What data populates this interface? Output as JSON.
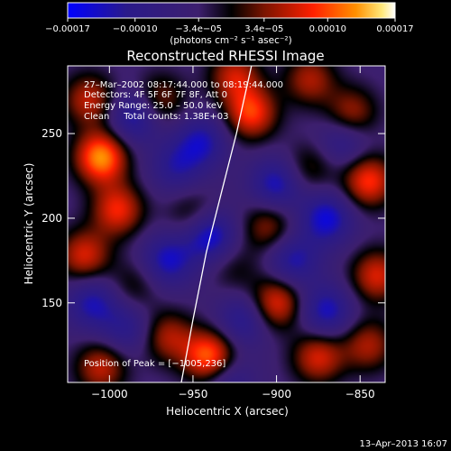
{
  "chart_data": {
    "type": "heatmap",
    "title": "Reconstructed RHESSI Image",
    "xlabel": "Heliocentric X (arcsec)",
    "ylabel": "Heliocentric Y (arcsec)",
    "xlim": [
      -1025,
      -835
    ],
    "ylim": [
      103,
      290
    ],
    "xticks": [
      -1000,
      -950,
      -900,
      -850
    ],
    "yticks": [
      150,
      200,
      250
    ],
    "xtick_labels": [
      "−1000",
      "−950",
      "−900",
      "−850"
    ],
    "ytick_labels": [
      "150",
      "200",
      "250"
    ],
    "colorbar": {
      "ticks": [
        -0.00017,
        -0.0001,
        -3.4e-05,
        3.4e-05,
        0.0001,
        0.00017
      ],
      "tick_labels": [
        "−0.00017",
        "−0.00010",
        "−3.4e−05",
        "3.4e−05",
        "0.00010",
        "0.00017"
      ],
      "range": [
        -0.00017,
        0.00017
      ],
      "unit_label": "(photons cm⁻² s⁻¹ asec⁻²)",
      "colormap": [
        "#0000ff",
        "#2a1a8a",
        "#3d1f6e",
        "#000000",
        "#7a1400",
        "#ff2000",
        "#ff9000",
        "#ffe87a",
        "#ffffff"
      ]
    },
    "annotations": {
      "time": "27–Mar–2002 08:17:44.000 to 08:19:44.000",
      "detectors": "Detectors: 4F 5F 6F 7F 8F, Att 0",
      "energy": "Energy Range: 25.0 – 50.0 keV",
      "clean": "Clean     Total counts: 1.38E+03",
      "peak": "Position of Peak = [−1005,236]"
    },
    "peak": [
      -1005,
      236
    ],
    "limb_curve": [
      [
        -957,
        103
      ],
      [
        -950,
        140
      ],
      [
        -942,
        180
      ],
      [
        -933,
        215
      ],
      [
        -924,
        250
      ],
      [
        -915,
        290
      ]
    ],
    "sources": [
      {
        "x": -1005,
        "y": 236,
        "v": 0.00017
      },
      {
        "x": -1012,
        "y": 270,
        "v": 0.0001
      },
      {
        "x": -970,
        "y": 270,
        "v": 8e-05
      },
      {
        "x": -925,
        "y": 284,
        "v": 0.0001
      },
      {
        "x": -915,
        "y": 262,
        "v": 0.00013
      },
      {
        "x": -880,
        "y": 282,
        "v": 9e-05
      },
      {
        "x": -855,
        "y": 262,
        "v": 9e-05
      },
      {
        "x": -845,
        "y": 222,
        "v": 0.00013
      },
      {
        "x": -840,
        "y": 166,
        "v": 0.00011
      },
      {
        "x": -845,
        "y": 125,
        "v": 9e-05
      },
      {
        "x": -875,
        "y": 118,
        "v": 0.00011
      },
      {
        "x": -900,
        "y": 150,
        "v": 0.00012
      },
      {
        "x": -940,
        "y": 118,
        "v": 0.00016
      },
      {
        "x": -965,
        "y": 130,
        "v": 9e-05
      },
      {
        "x": -1005,
        "y": 112,
        "v": 0.0001
      },
      {
        "x": -1015,
        "y": 178,
        "v": 0.00011
      },
      {
        "x": -995,
        "y": 205,
        "v": 0.00012
      },
      {
        "x": -950,
        "y": 202,
        "v": 6e-05
      },
      {
        "x": -905,
        "y": 195,
        "v": 8e-05
      },
      {
        "x": -880,
        "y": 230,
        "v": 6e-05
      },
      {
        "x": -985,
        "y": 160,
        "v": 5e-05
      },
      {
        "x": -925,
        "y": 170,
        "v": 4e-05
      },
      {
        "x": -985,
        "y": 260,
        "v": -0.0001
      },
      {
        "x": -945,
        "y": 245,
        "v": -9e-05
      },
      {
        "x": -960,
        "y": 230,
        "v": -7e-05
      },
      {
        "x": -940,
        "y": 190,
        "v": -0.00012
      },
      {
        "x": -900,
        "y": 220,
        "v": -0.0001
      },
      {
        "x": -870,
        "y": 200,
        "v": -0.00011
      },
      {
        "x": -890,
        "y": 175,
        "v": -9e-05
      },
      {
        "x": -965,
        "y": 175,
        "v": -0.0001
      },
      {
        "x": -1010,
        "y": 150,
        "v": -9e-05
      },
      {
        "x": -990,
        "y": 135,
        "v": -7e-05
      },
      {
        "x": -920,
        "y": 140,
        "v": -8e-05
      },
      {
        "x": -870,
        "y": 145,
        "v": -0.0001
      },
      {
        "x": -930,
        "y": 105,
        "v": -7e-05
      },
      {
        "x": -860,
        "y": 245,
        "v": -7e-05
      }
    ]
  },
  "footer": {
    "timestamp": "13–Apr–2013 16:07"
  }
}
